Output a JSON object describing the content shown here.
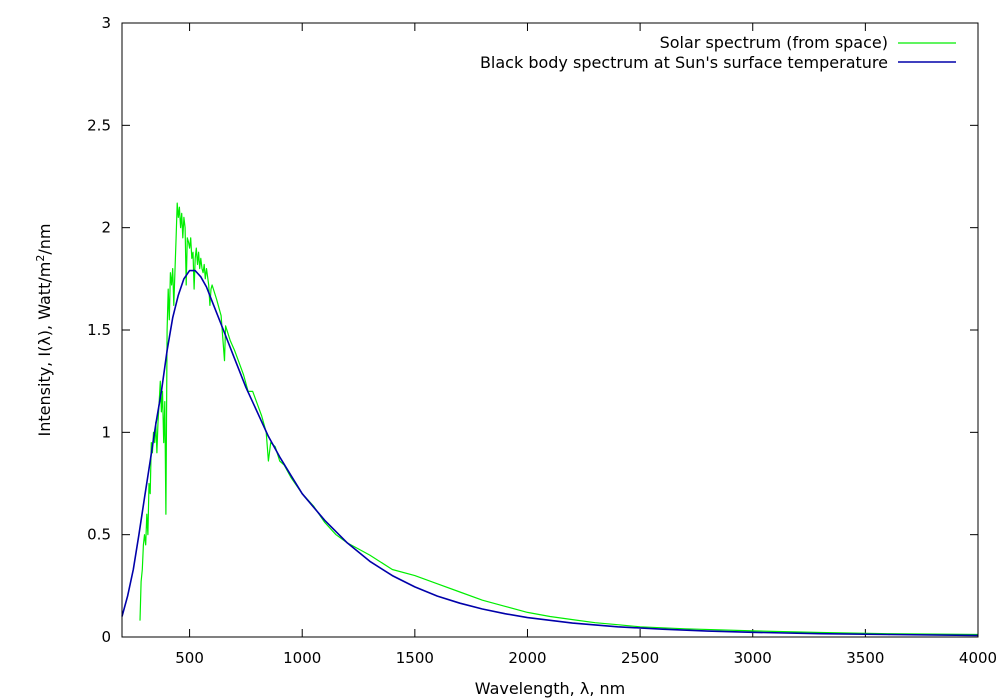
{
  "chart_data": {
    "type": "line",
    "xlabel": "Wavelength, λ, nm",
    "ylabel": {
      "prefix": "Intensity, I(λ), Watt/m",
      "superscript": "2",
      "suffix": "/nm"
    },
    "xlim": [
      200,
      4000
    ],
    "ylim": [
      0,
      3
    ],
    "x_ticks": [
      500,
      1000,
      1500,
      2000,
      2500,
      3000,
      3500,
      4000
    ],
    "y_ticks": [
      0,
      0.5,
      1,
      1.5,
      2,
      2.5,
      3
    ],
    "x_tick_labels": [
      "500",
      "1000",
      "1500",
      "2000",
      "2500",
      "3000",
      "3500",
      "4000"
    ],
    "y_tick_labels": [
      "0",
      "0.5",
      "1",
      "1.5",
      "2",
      "2.5",
      "3"
    ],
    "grid": false,
    "legend_position": "top-right",
    "series": [
      {
        "name": "Solar spectrum (from space)",
        "color": "#00ee00",
        "points": [
          [
            280,
            0.08
          ],
          [
            285,
            0.27
          ],
          [
            290,
            0.33
          ],
          [
            295,
            0.45
          ],
          [
            300,
            0.5
          ],
          [
            305,
            0.45
          ],
          [
            310,
            0.6
          ],
          [
            315,
            0.5
          ],
          [
            320,
            0.75
          ],
          [
            325,
            0.7
          ],
          [
            330,
            0.95
          ],
          [
            335,
            0.9
          ],
          [
            340,
            1.0
          ],
          [
            345,
            0.95
          ],
          [
            350,
            1.05
          ],
          [
            355,
            0.9
          ],
          [
            360,
            1.05
          ],
          [
            365,
            1.15
          ],
          [
            370,
            1.25
          ],
          [
            375,
            1.1
          ],
          [
            380,
            1.2
          ],
          [
            385,
            0.95
          ],
          [
            390,
            1.15
          ],
          [
            395,
            0.6
          ],
          [
            400,
            1.5
          ],
          [
            405,
            1.7
          ],
          [
            410,
            1.55
          ],
          [
            415,
            1.78
          ],
          [
            420,
            1.72
          ],
          [
            425,
            1.8
          ],
          [
            430,
            1.62
          ],
          [
            435,
            1.78
          ],
          [
            440,
            1.95
          ],
          [
            445,
            2.12
          ],
          [
            450,
            2.05
          ],
          [
            455,
            2.1
          ],
          [
            460,
            2.0
          ],
          [
            465,
            2.07
          ],
          [
            470,
            1.95
          ],
          [
            475,
            2.05
          ],
          [
            480,
            2.0
          ],
          [
            485,
            1.72
          ],
          [
            490,
            1.95
          ],
          [
            495,
            1.93
          ],
          [
            500,
            1.9
          ],
          [
            505,
            1.95
          ],
          [
            510,
            1.85
          ],
          [
            515,
            1.88
          ],
          [
            520,
            1.7
          ],
          [
            525,
            1.85
          ],
          [
            530,
            1.9
          ],
          [
            535,
            1.82
          ],
          [
            540,
            1.88
          ],
          [
            545,
            1.8
          ],
          [
            550,
            1.85
          ],
          [
            555,
            1.8
          ],
          [
            560,
            1.78
          ],
          [
            565,
            1.82
          ],
          [
            570,
            1.75
          ],
          [
            575,
            1.8
          ],
          [
            580,
            1.76
          ],
          [
            585,
            1.72
          ],
          [
            590,
            1.62
          ],
          [
            595,
            1.7
          ],
          [
            600,
            1.72
          ],
          [
            620,
            1.65
          ],
          [
            640,
            1.57
          ],
          [
            655,
            1.35
          ],
          [
            660,
            1.52
          ],
          [
            680,
            1.45
          ],
          [
            700,
            1.4
          ],
          [
            720,
            1.34
          ],
          [
            740,
            1.28
          ],
          [
            760,
            1.2
          ],
          [
            780,
            1.2
          ],
          [
            800,
            1.14
          ],
          [
            820,
            1.08
          ],
          [
            840,
            1.0
          ],
          [
            850,
            0.86
          ],
          [
            860,
            0.95
          ],
          [
            880,
            0.93
          ],
          [
            900,
            0.86
          ],
          [
            920,
            0.84
          ],
          [
            950,
            0.78
          ],
          [
            1000,
            0.7
          ],
          [
            1050,
            0.64
          ],
          [
            1100,
            0.56
          ],
          [
            1150,
            0.5
          ],
          [
            1200,
            0.46
          ],
          [
            1300,
            0.4
          ],
          [
            1400,
            0.33
          ],
          [
            1500,
            0.3
          ],
          [
            1600,
            0.26
          ],
          [
            1700,
            0.22
          ],
          [
            1800,
            0.18
          ],
          [
            1900,
            0.15
          ],
          [
            2000,
            0.12
          ],
          [
            2100,
            0.1
          ],
          [
            2200,
            0.085
          ],
          [
            2300,
            0.07
          ],
          [
            2400,
            0.06
          ],
          [
            2500,
            0.05
          ],
          [
            2700,
            0.04
          ],
          [
            3000,
            0.03
          ],
          [
            3300,
            0.022
          ],
          [
            3600,
            0.016
          ],
          [
            4000,
            0.012
          ]
        ]
      },
      {
        "name": "Black body spectrum at Sun's surface temperature",
        "color": "#0000aa",
        "points": [
          [
            200,
            0.1
          ],
          [
            225,
            0.2
          ],
          [
            250,
            0.33
          ],
          [
            275,
            0.5
          ],
          [
            300,
            0.68
          ],
          [
            325,
            0.86
          ],
          [
            350,
            1.04
          ],
          [
            375,
            1.2
          ],
          [
            400,
            1.4
          ],
          [
            425,
            1.56
          ],
          [
            450,
            1.67
          ],
          [
            475,
            1.75
          ],
          [
            500,
            1.79
          ],
          [
            525,
            1.79
          ],
          [
            550,
            1.76
          ],
          [
            575,
            1.71
          ],
          [
            600,
            1.64
          ],
          [
            650,
            1.5
          ],
          [
            700,
            1.36
          ],
          [
            750,
            1.22
          ],
          [
            800,
            1.1
          ],
          [
            850,
            0.98
          ],
          [
            900,
            0.88
          ],
          [
            950,
            0.79
          ],
          [
            1000,
            0.7
          ],
          [
            1100,
            0.57
          ],
          [
            1200,
            0.46
          ],
          [
            1300,
            0.37
          ],
          [
            1400,
            0.3
          ],
          [
            1500,
            0.245
          ],
          [
            1600,
            0.2
          ],
          [
            1700,
            0.165
          ],
          [
            1800,
            0.137
          ],
          [
            1900,
            0.114
          ],
          [
            2000,
            0.095
          ],
          [
            2200,
            0.068
          ],
          [
            2400,
            0.05
          ],
          [
            2600,
            0.038
          ],
          [
            2800,
            0.029
          ],
          [
            3000,
            0.023
          ],
          [
            3300,
            0.016
          ],
          [
            3600,
            0.012
          ],
          [
            4000,
            0.008
          ]
        ]
      }
    ]
  }
}
